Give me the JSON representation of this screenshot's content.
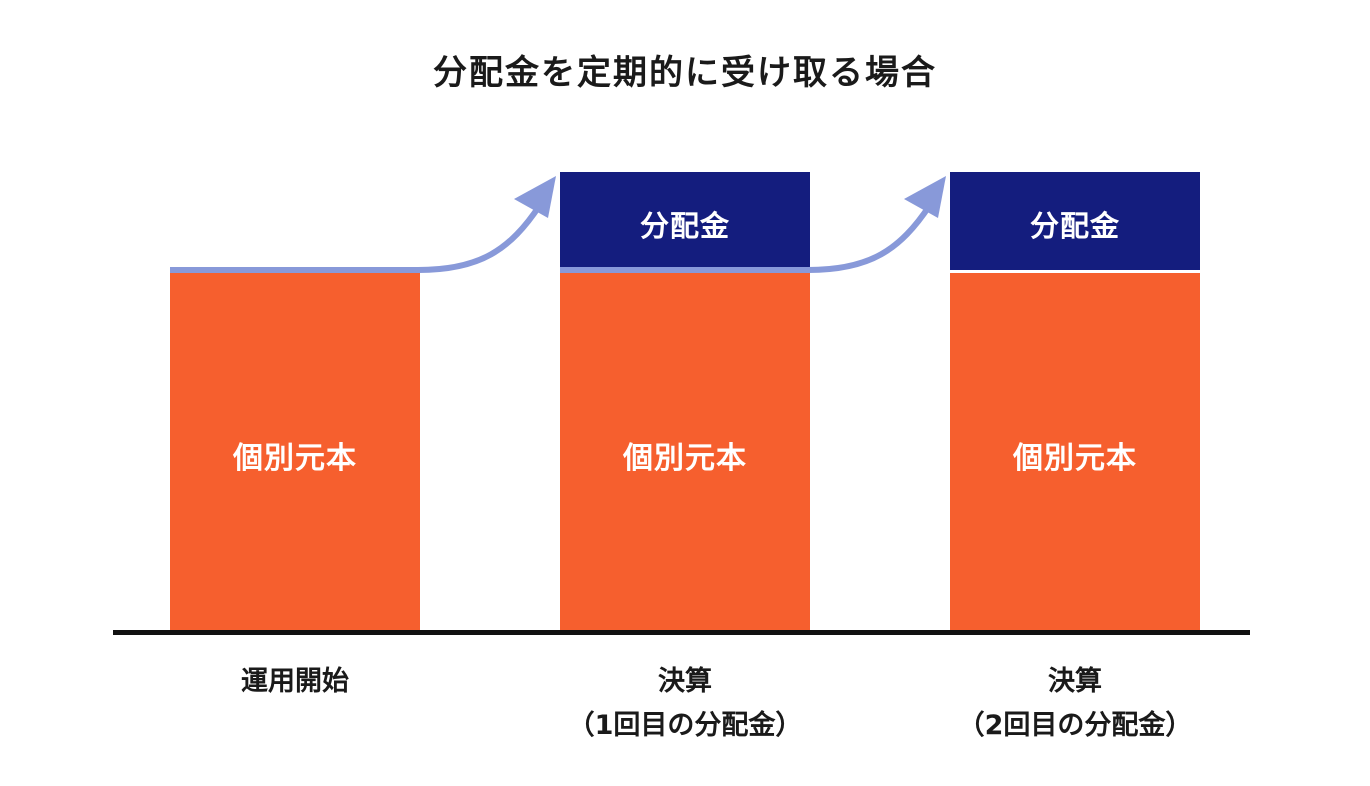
{
  "title": "分配金を定期的に受け取る場合",
  "colors": {
    "principal": "#f65f2e",
    "distribution": "#141d7e",
    "arrow": "#8899d9",
    "baseline": "#111111"
  },
  "columns": [
    {
      "principal_label": "個別元本",
      "distribution_label": null,
      "xlabel_line1": "運用開始",
      "xlabel_line2": ""
    },
    {
      "principal_label": "個別元本",
      "distribution_label": "分配金",
      "xlabel_line1": "決算",
      "xlabel_line2": "（1回目の分配金）"
    },
    {
      "principal_label": "個別元本",
      "distribution_label": "分配金",
      "xlabel_line1": "決算",
      "xlabel_line2": "（2回目の分配金）"
    }
  ]
}
